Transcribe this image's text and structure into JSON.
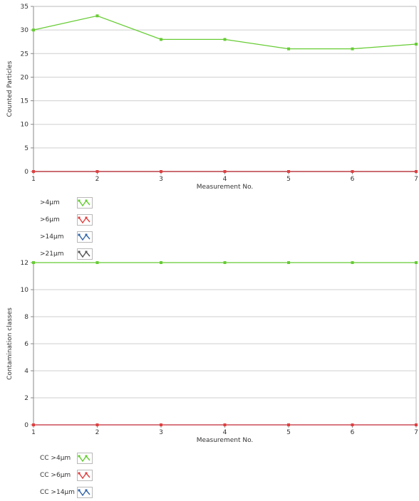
{
  "chart_data": [
    {
      "type": "line",
      "xlabel": "Measurement No.",
      "ylabel": "Counted Particles",
      "x": [
        1,
        2,
        3,
        4,
        5,
        6,
        7
      ],
      "xlim": [
        1,
        7
      ],
      "ylim": [
        0,
        35
      ],
      "yticks": [
        0,
        5,
        10,
        15,
        20,
        25,
        30,
        35
      ],
      "grid": true,
      "legend_position": "bottom-left",
      "series": [
        {
          "name": ">4µm",
          "values": [
            30,
            33,
            28,
            28,
            26,
            26,
            27
          ],
          "color": "#66cc33"
        },
        {
          "name": ">6µm",
          "values": [
            0,
            0,
            0,
            0,
            0,
            0,
            0
          ],
          "color": "#e04040"
        },
        {
          "name": ">14µm",
          "values": [
            0,
            0,
            0,
            0,
            0,
            0,
            0
          ],
          "color": "#3366aa"
        },
        {
          "name": ">21µm",
          "values": [
            0,
            0,
            0,
            0,
            0,
            0,
            0
          ],
          "color": "#555555"
        }
      ]
    },
    {
      "type": "line",
      "xlabel": "Measurement No.",
      "ylabel": "Contamination classes",
      "x": [
        1,
        2,
        3,
        4,
        5,
        6,
        7
      ],
      "xlim": [
        1,
        7
      ],
      "ylim": [
        0,
        12
      ],
      "yticks": [
        0,
        2,
        4,
        6,
        8,
        10,
        12
      ],
      "grid": true,
      "legend_position": "bottom-left",
      "series": [
        {
          "name": "CC >4µm",
          "values": [
            12,
            12,
            12,
            12,
            12,
            12,
            12
          ],
          "color": "#66cc33"
        },
        {
          "name": "CC >6µm",
          "values": [
            0,
            0,
            0,
            0,
            0,
            0,
            0
          ],
          "color": "#e04040"
        },
        {
          "name": "CC >14µm",
          "values": [
            0,
            0,
            0,
            0,
            0,
            0,
            0
          ],
          "color": "#3366aa"
        }
      ]
    }
  ]
}
